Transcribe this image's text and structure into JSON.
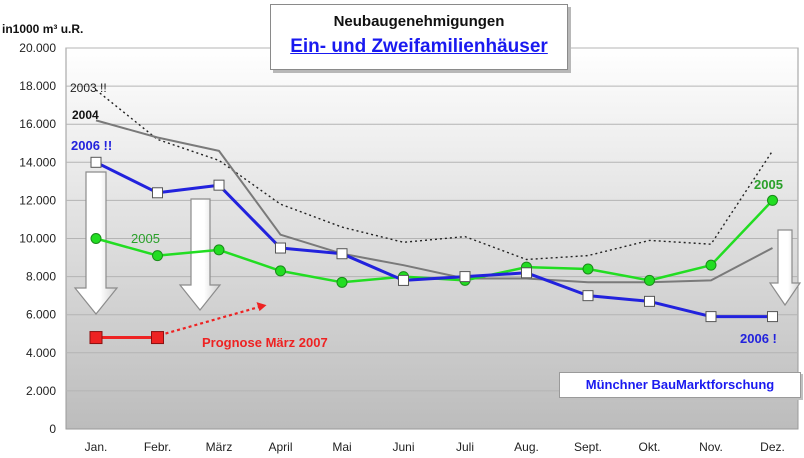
{
  "header": {
    "title": "Neubaugenehmigungen",
    "subtitle": "Ein- und Zweifamilienhäuser"
  },
  "unit_label": "in1000 m³ u.R.",
  "source": "Münchner BauMarktforschung",
  "colors": {
    "s2003": "#222222",
    "s2004": "#7a7a7a",
    "s2005": "#22dd22",
    "s2006": "#2222dd",
    "forecast": "#ee2222",
    "plot_bg_top": "#ffffff",
    "plot_bg_bottom": "#bdbdbd"
  },
  "chart_data": {
    "type": "line",
    "categories": [
      "Jan.",
      "Febr.",
      "März",
      "April",
      "Mai",
      "Juni",
      "Juli",
      "Aug.",
      "Sept.",
      "Okt.",
      "Nov.",
      "Dez."
    ],
    "ylim": [
      0,
      20000
    ],
    "yticks": [
      "0",
      "2.000",
      "4.000",
      "6.000",
      "8.000",
      "10.000",
      "12.000",
      "14.000",
      "16.000",
      "18.000",
      "20.000"
    ],
    "grid": true,
    "series": [
      {
        "name": "2003 !!",
        "style": "dotted",
        "values": [
          17800,
          15200,
          14100,
          11800,
          10600,
          9800,
          10100,
          8900,
          9100,
          9900,
          9700,
          14600
        ]
      },
      {
        "name": "2004",
        "style": "solid",
        "values": [
          16200,
          15300,
          14600,
          10200,
          9200,
          8600,
          7900,
          7900,
          7700,
          7700,
          7800,
          9500
        ]
      },
      {
        "name": "2005",
        "style": "markers-circle",
        "values": [
          10000,
          9100,
          9400,
          8300,
          7700,
          8000,
          7800,
          8500,
          8400,
          7800,
          8600,
          12000
        ]
      },
      {
        "name": "2006 !!",
        "end_label": "2006 !",
        "style": "markers-square",
        "values": [
          14000,
          12400,
          12800,
          9500,
          9200,
          7800,
          8000,
          8200,
          7000,
          6700,
          5900,
          5900
        ]
      }
    ],
    "forecast": {
      "label": "Prognose März  2007",
      "values": [
        4800,
        4800
      ],
      "trend_end": 6500
    },
    "second_label_2005": "2005"
  }
}
